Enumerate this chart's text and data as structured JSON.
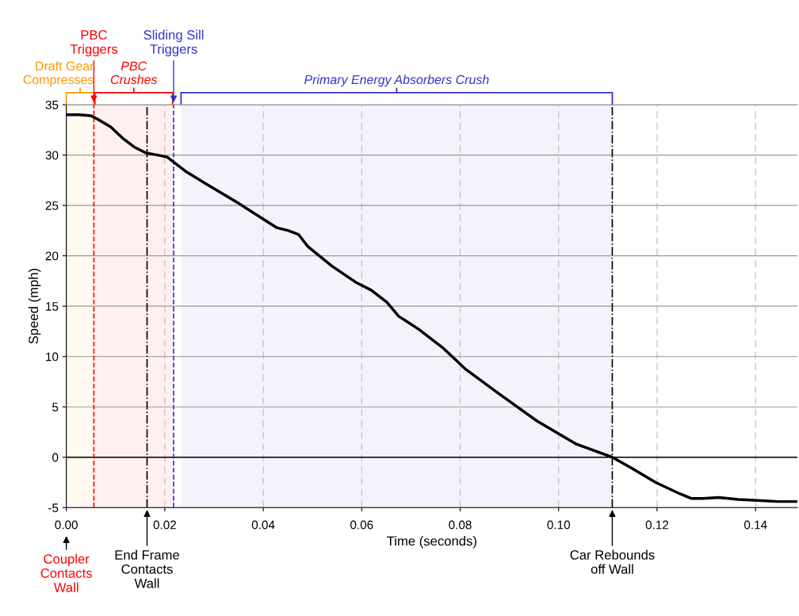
{
  "chart_data": {
    "type": "line",
    "xlabel": "Time (seconds)",
    "ylabel": "Speed (mph)",
    "x": [
      0,
      0.0026,
      0.005,
      0.0066,
      0.009,
      0.0114,
      0.0138,
      0.0162,
      0.0186,
      0.0205,
      0.0221,
      0.0242,
      0.0282,
      0.0347,
      0.0411,
      0.0427,
      0.0451,
      0.0472,
      0.0491,
      0.0539,
      0.0587,
      0.0619,
      0.0651,
      0.0675,
      0.0716,
      0.0764,
      0.0812,
      0.0876,
      0.0956,
      0.1036,
      0.1109,
      0.1149,
      0.1197,
      0.1245,
      0.127,
      0.1293,
      0.1325,
      0.1365,
      0.1405,
      0.1446,
      0.1482
    ],
    "series": [
      {
        "color": "#000000",
        "values": [
          34.0,
          34.0,
          33.9,
          33.5,
          32.8,
          31.7,
          30.8,
          30.2,
          30.0,
          29.8,
          29.2,
          28.4,
          27.2,
          25.3,
          23.3,
          22.8,
          22.5,
          22.1,
          20.9,
          19.0,
          17.4,
          16.6,
          15.4,
          14.0,
          12.7,
          10.9,
          8.7,
          6.4,
          3.6,
          1.3,
          0,
          -1.1,
          -2.5,
          -3.6,
          -4.1,
          -4.1,
          -4.0,
          -4.2,
          -4.3,
          -4.4,
          -4.4
        ]
      }
    ],
    "annotations": [
      "Coupler\nContacts\nWall"
    ],
    "xlim": [
      0,
      0.1485
    ],
    "ylim": [
      -5,
      35
    ],
    "xticks": [
      {
        "value": 0,
        "label": "0.00"
      },
      {
        "value": 0.02,
        "label": "0.02"
      },
      {
        "value": 0.04,
        "label": "0.04"
      },
      {
        "value": 0.06,
        "label": "0.06"
      },
      {
        "value": 0.08,
        "label": "0.08"
      },
      {
        "value": 0.1,
        "label": "0.10"
      },
      {
        "value": 0.12,
        "label": "0.12"
      },
      {
        "value": 0.14,
        "label": "0.14"
      }
    ],
    "yticks": [
      -5,
      0,
      5,
      10,
      15,
      20,
      25,
      30,
      35
    ],
    "grid": true,
    "legend": false,
    "marker": "none",
    "line_style": "solid",
    "ref_lines": [
      {
        "axis": "y",
        "value": 0,
        "color": "#000000",
        "line_style": "solid"
      },
      {
        "axis": "x",
        "value": 0.0056,
        "label": "PBC\nTriggers",
        "color": "#ff0000",
        "line_style": "dashed"
      },
      {
        "axis": "x",
        "value": 0.0164,
        "label": "End Frame\nContacts\nWall",
        "color": "#000000",
        "line_style": "dashdot"
      },
      {
        "axis": "x",
        "value": 0.0218,
        "label": "Sliding Sill\nTriggers",
        "color": "#3333cc",
        "line_style": "dashed"
      },
      {
        "axis": "x",
        "value": 0.1109,
        "label": "Car Rebounds\noff Wall",
        "color": "#000000",
        "line_style": "dashdot"
      }
    ],
    "bands": [
      {
        "axis": "x",
        "from": 0,
        "to": 0.0056,
        "label": "Draft Gear\nCompresses",
        "color": "#ff9900"
      },
      {
        "axis": "x",
        "from": 0.0058,
        "to": 0.0216,
        "label": "PBC\nCrushes",
        "color": "#ff0000"
      },
      {
        "axis": "x",
        "from": 0.0233,
        "to": 0.1109,
        "label": "Primary Energy Absorbers Crush",
        "color": "#3333cc"
      }
    ]
  }
}
